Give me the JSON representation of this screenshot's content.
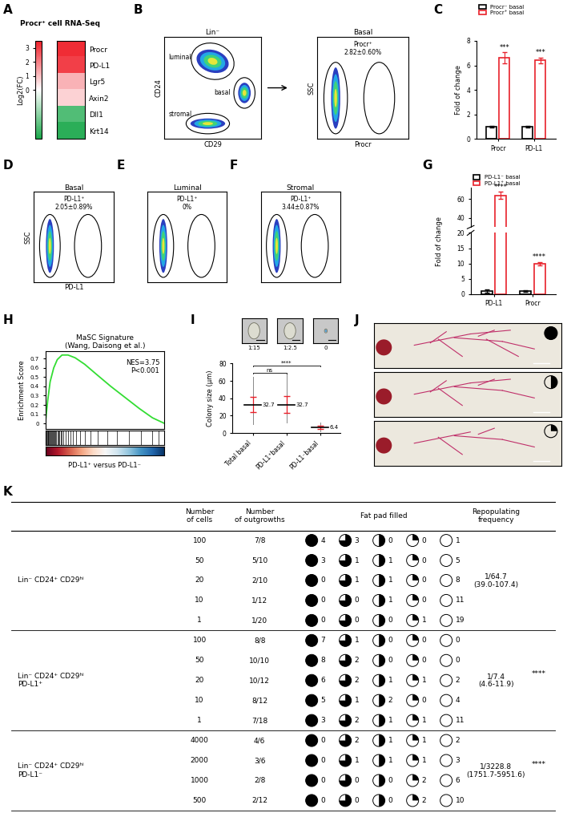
{
  "chart_data": [
    {
      "panel": "A",
      "type": "heatmap",
      "title": "Procr⁺ cell RNA-Seq",
      "categories": [
        "Procr",
        "PD-L1",
        "Lgr5",
        "Axin2",
        "Dll1",
        "Krt14"
      ],
      "values": [
        3.3,
        3.0,
        1.2,
        0.7,
        -0.9,
        -1.1
      ],
      "colorbar_label": "Log2(FC)",
      "colorbar_range": [
        -1.2,
        3.5
      ],
      "colorbar_ticks": [
        0,
        1,
        2,
        3
      ]
    },
    {
      "panel": "C",
      "type": "bar",
      "categories": [
        "Procr",
        "PD-L1"
      ],
      "ylabel": "Fold of change",
      "ylim": [
        0,
        8
      ],
      "yticks": [
        0,
        2,
        4,
        6,
        8
      ],
      "legend": "upper left",
      "series": [
        {
          "name": "Procr⁻ basal",
          "color": "#000000",
          "values": [
            1,
            1
          ],
          "errors": [
            0.05,
            0.08
          ]
        },
        {
          "name": "Procr⁺ basal",
          "color": "#e8202a",
          "values": [
            6.6,
            6.4
          ],
          "errors": [
            0.45,
            0.25
          ],
          "annotations": [
            "***",
            "***"
          ]
        }
      ]
    },
    {
      "panel": "G",
      "type": "bar",
      "categories": [
        "PD-L1",
        "Procr"
      ],
      "ylabel": "Fold of change",
      "axes": [
        {
          "ylim": [
            0,
            20
          ],
          "yticks": [
            0,
            5,
            10,
            15,
            20
          ]
        },
        {
          "ylim": [
            30,
            72
          ],
          "yticks": [
            40,
            60
          ]
        }
      ],
      "legend": "upper left",
      "series": [
        {
          "name": "PD-L1⁻ basal",
          "color": "#000000",
          "values": [
            1,
            1
          ],
          "errors": [
            0.6,
            0.3
          ]
        },
        {
          "name": "PD-L1⁺ basal",
          "color": "#e8202a",
          "values": [
            64,
            10
          ],
          "errors": [
            4,
            0.5
          ],
          "annotations": [
            "****",
            "****"
          ]
        }
      ]
    },
    {
      "panel": "H",
      "type": "line",
      "title": "MaSC Signature\n(Wang, Daisong et al.)",
      "ylabel": "Enrichment Score",
      "xlabel": "PD-L1⁺ versus PD-L1⁻",
      "color": "#33dd33",
      "x": [
        0,
        2,
        4,
        7,
        10,
        14,
        19,
        25,
        33,
        43,
        55,
        67,
        79,
        90,
        100
      ],
      "values": [
        0,
        0.25,
        0.45,
        0.6,
        0.69,
        0.74,
        0.74,
        0.71,
        0.64,
        0.53,
        0.4,
        0.28,
        0.16,
        0.06,
        0
      ],
      "xlim": [
        0,
        100
      ],
      "ylim": [
        -0.06,
        0.78
      ],
      "yticks": [
        0,
        0.1,
        0.2,
        0.3,
        0.4,
        0.5,
        0.6,
        0.7
      ],
      "tick_labels": "y",
      "annotations": [
        "NES=3.75",
        "P<0.001"
      ],
      "hits": [
        0.5,
        1,
        1.5,
        2,
        2.5,
        3,
        3.5,
        4,
        5,
        5.5,
        6,
        7,
        7.5,
        8,
        9,
        10,
        11,
        12,
        13,
        14,
        15,
        17,
        19,
        21,
        23,
        26,
        29,
        33,
        38,
        44,
        52,
        60,
        70,
        80,
        90,
        95
      ]
    },
    {
      "panel": "I",
      "type": "dot",
      "categories": [
        "Total basal",
        "PD-L1⁺basal",
        "PD-L1⁻basal"
      ],
      "values": [
        32.7,
        32.7,
        6.4
      ],
      "data_labels": true,
      "sd": [
        9,
        9.5,
        2
      ],
      "range": [
        [
          10,
          65
        ],
        [
          12,
          68
        ],
        [
          2,
          12
        ]
      ],
      "ylabel": "Colony size (μm)",
      "ylim": [
        0,
        80
      ],
      "yticks": [
        0,
        20,
        40,
        60,
        80
      ],
      "ratio_labels": [
        "1:15",
        "1:2.5",
        "0"
      ],
      "comparisons": [
        {
          "groups": [
            0,
            1
          ],
          "label": "ns"
        },
        {
          "groups": [
            0,
            2
          ],
          "label": "****"
        }
      ]
    }
  ],
  "flow_plots": [
    {
      "panel": "B",
      "title": "Lin⁻",
      "xlabel": "CD29",
      "ylabel": "CD24",
      "gates": [
        "luminal",
        "basal",
        "stromal"
      ]
    },
    {
      "title": "Basal",
      "xlabel": "Procr",
      "ylabel": "SSC",
      "gate_label": "Procr⁺",
      "percent": "2.82±0.60%"
    },
    {
      "panel": "D",
      "title": "Basal",
      "xlabel": "PD-L1",
      "ylabel": "SSC",
      "gate_label": "PD-L1⁺",
      "percent": "2.05±0.89%"
    },
    {
      "panel": "E",
      "title": "Luminal",
      "gate_label": "PD-L1⁺",
      "percent": "0%"
    },
    {
      "panel": "F",
      "title": "Stromal",
      "gate_label": "PD-L1⁺",
      "percent": "3.44±0.87%"
    }
  ],
  "images": {
    "panel": "J",
    "fat_pad_filled": [
      1,
      0.5,
      0.25
    ]
  },
  "table": {
    "panel": "K",
    "header": [
      "Number\nof cells",
      "Number\nof outgrowths",
      "Fat pad filled",
      "Repopulating\nfrequency"
    ],
    "icon_fractions": [
      1,
      0.75,
      0.5,
      0.25,
      0
    ],
    "groups": [
      {
        "name": "Lin⁻ CD24⁺ CD29ʰⁱ",
        "frequency": "1/64.7",
        "interval": "(39.0-107.4)",
        "rows": [
          {
            "cells": 100,
            "outgrowths": "7/8",
            "fat_pad": [
              4,
              3,
              0,
              0,
              1
            ]
          },
          {
            "cells": 50,
            "outgrowths": "5/10",
            "fat_pad": [
              3,
              1,
              1,
              0,
              5
            ]
          },
          {
            "cells": 20,
            "outgrowths": "2/10",
            "fat_pad": [
              0,
              1,
              1,
              0,
              8
            ]
          },
          {
            "cells": 10,
            "outgrowths": "1/12",
            "fat_pad": [
              0,
              0,
              1,
              0,
              11
            ]
          },
          {
            "cells": 1,
            "outgrowths": "1/20",
            "fat_pad": [
              0,
              0,
              0,
              1,
              19
            ]
          }
        ]
      },
      {
        "name": "Lin⁻ CD24⁺ CD29ʰⁱ\nPD-L1⁺",
        "frequency": "1/7.4",
        "interval": "(4.6-11.9)",
        "significance": "****",
        "rows": [
          {
            "cells": 100,
            "outgrowths": "8/8",
            "fat_pad": [
              7,
              1,
              0,
              0,
              0
            ]
          },
          {
            "cells": 50,
            "outgrowths": "10/10",
            "fat_pad": [
              8,
              2,
              0,
              0,
              0
            ]
          },
          {
            "cells": 20,
            "outgrowths": "10/12",
            "fat_pad": [
              6,
              2,
              1,
              1,
              2
            ]
          },
          {
            "cells": 10,
            "outgrowths": "8/12",
            "fat_pad": [
              5,
              1,
              2,
              0,
              4
            ]
          },
          {
            "cells": 1,
            "outgrowths": "7/18",
            "fat_pad": [
              3,
              2,
              1,
              1,
              11
            ]
          }
        ]
      },
      {
        "name": "Lin⁻ CD24⁺ CD29ʰⁱ\nPD-L1⁻",
        "frequency": "1/3228.8",
        "interval": "(1751.7-5951.6)",
        "significance": "****",
        "rows": [
          {
            "cells": 4000,
            "outgrowths": "4/6",
            "fat_pad": [
              0,
              2,
              1,
              1,
              2
            ]
          },
          {
            "cells": 2000,
            "outgrowths": "3/6",
            "fat_pad": [
              0,
              1,
              1,
              1,
              3
            ]
          },
          {
            "cells": 1000,
            "outgrowths": "2/8",
            "fat_pad": [
              0,
              0,
              0,
              2,
              6
            ]
          },
          {
            "cells": 500,
            "outgrowths": "2/12",
            "fat_pad": [
              0,
              0,
              0,
              2,
              10
            ]
          }
        ]
      }
    ]
  }
}
